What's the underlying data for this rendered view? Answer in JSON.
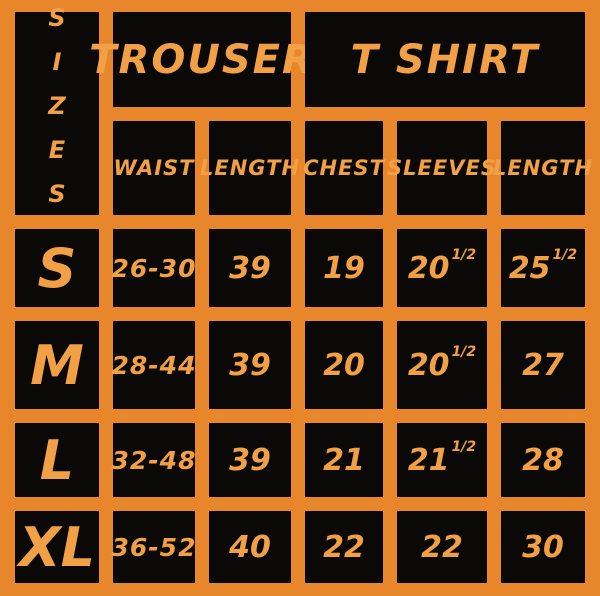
{
  "chart_data": {
    "type": "table",
    "title": "SIZES",
    "sizes_header": "SIZES",
    "column_groups": [
      {
        "label": "TROUSER",
        "span": 2
      },
      {
        "label": "T SHIRT",
        "span": 3
      }
    ],
    "columns": [
      "WAIST",
      "LENGTH",
      "CHEST",
      "SLEEVES",
      "LENGTH"
    ],
    "rows": [
      {
        "size": "S",
        "cells": [
          {
            "main": "26-30"
          },
          {
            "main": "39"
          },
          {
            "main": "19"
          },
          {
            "main": "20",
            "sup": "1/2"
          },
          {
            "main": "25",
            "sup": "1/2"
          }
        ]
      },
      {
        "size": "M",
        "cells": [
          {
            "main": "28-44"
          },
          {
            "main": "39"
          },
          {
            "main": "20"
          },
          {
            "main": "20",
            "sup": "1/2"
          },
          {
            "main": "27"
          }
        ]
      },
      {
        "size": "L",
        "cells": [
          {
            "main": "32-48"
          },
          {
            "main": "39"
          },
          {
            "main": "21"
          },
          {
            "main": "21",
            "sup": "1/2"
          },
          {
            "main": "28"
          }
        ]
      },
      {
        "size": "XL",
        "cells": [
          {
            "main": "36-52"
          },
          {
            "main": "40"
          },
          {
            "main": "22"
          },
          {
            "main": "22"
          },
          {
            "main": "30"
          }
        ]
      }
    ],
    "colors": {
      "background": "#E8862C",
      "cell_black": "#0B0907",
      "text_orange": "#F2A045"
    },
    "layout": {
      "grid": true,
      "legend": "none"
    }
  }
}
